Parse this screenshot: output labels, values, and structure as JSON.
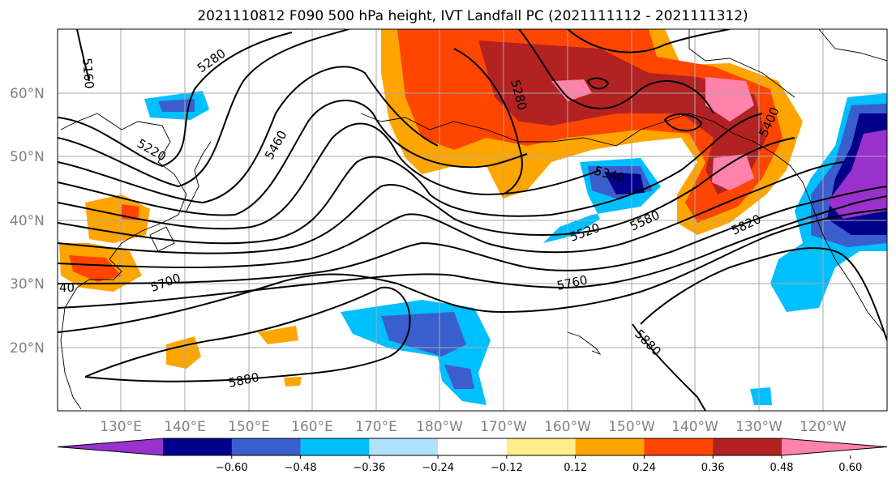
{
  "title": "2021110812 F090 500 hPa height, IVT Landfall PC (2021111112 - 2021111312)",
  "lat_labels": [
    "60°N",
    "50°N",
    "40°N",
    "30°N",
    "20°N"
  ],
  "lon_labels": [
    "130°E",
    "140°E",
    "150°E",
    "160°E",
    "170°E",
    "180°W",
    "170°W",
    "160°W",
    "150°W",
    "140°W",
    "130°W",
    "120°W"
  ],
  "contour_labels": [
    "5160",
    "5280",
    "5220",
    "5460",
    "5280",
    "5340",
    "5400",
    "5520",
    "5580",
    "5820",
    "5700",
    "5760",
    "5880",
    "5880",
    "40"
  ],
  "colorbar": {
    "ticks": [
      "−0.60",
      "−0.48",
      "−0.36",
      "−0.24",
      "−0.12",
      "0.12",
      "0.24",
      "0.36",
      "0.48",
      "0.60"
    ],
    "colors": [
      "#9932cc",
      "#00008b",
      "#3a5fcd",
      "#00bfff",
      "#b0e2ff",
      "#ffffff",
      "#ffec8b",
      "#ffa500",
      "#ff4500",
      "#b22222",
      "#ff82ab"
    ]
  }
}
